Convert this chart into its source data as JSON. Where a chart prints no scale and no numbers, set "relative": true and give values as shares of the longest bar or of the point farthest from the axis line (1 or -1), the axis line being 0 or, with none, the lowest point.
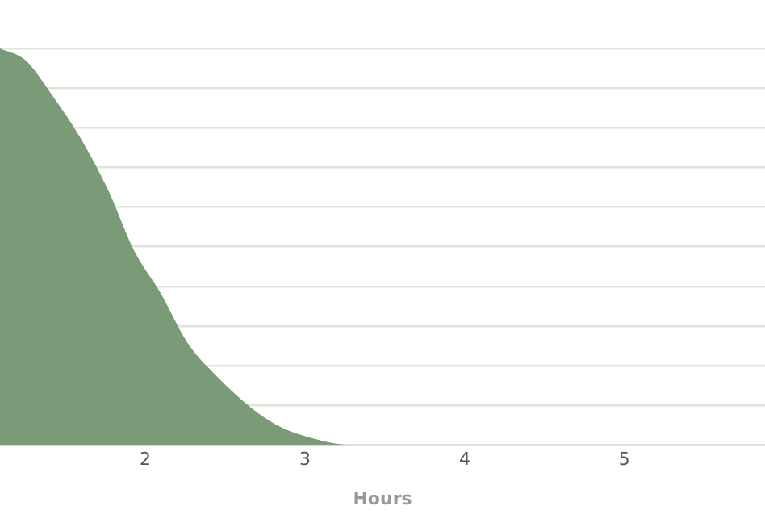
{
  "chart_data": {
    "type": "area",
    "xlabel": "Hours",
    "relative": true,
    "x": [
      1.09,
      1.25,
      1.42,
      1.6,
      1.77,
      1.93,
      2.1,
      2.26,
      2.43,
      2.78,
      3.11,
      3.28,
      5.88
    ],
    "series": [
      {
        "color": "#7a9a78",
        "values": [
          1,
          0.97,
          0.88,
          0.77,
          0.64,
          0.49,
          0.38,
          0.26,
          0.18,
          0.06,
          0.01,
          0,
          0
        ]
      }
    ],
    "xlim": [
      1.09,
      5.88
    ],
    "xticks": [
      2,
      3,
      4,
      5
    ],
    "grid": "y",
    "legend": false
  }
}
